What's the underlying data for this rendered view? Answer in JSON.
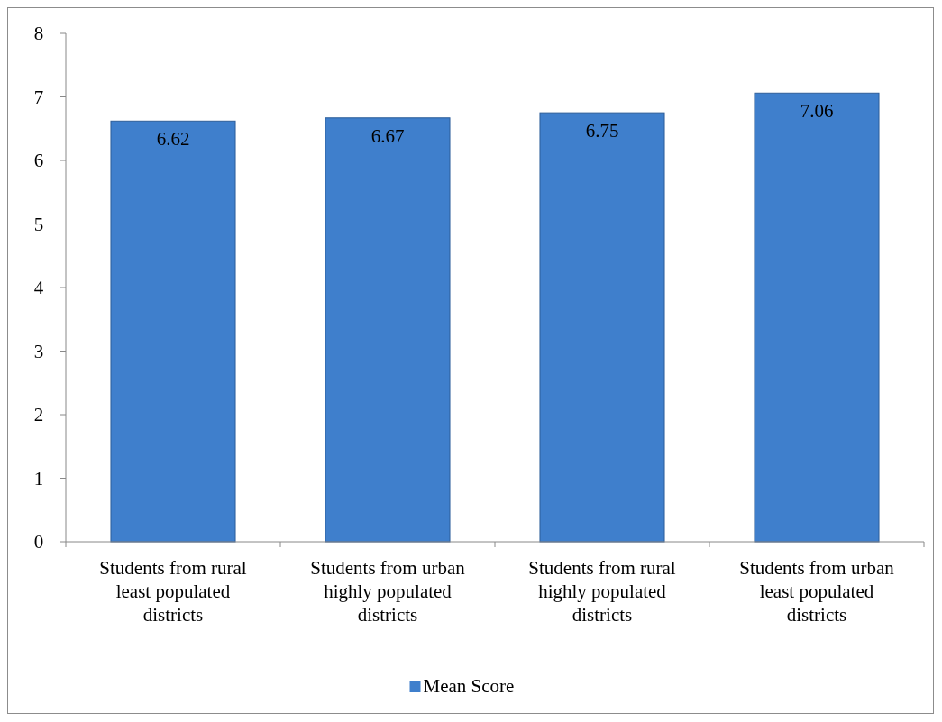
{
  "chart_data": {
    "type": "bar",
    "categories": [
      "Students from rural least populated districts",
      "Students from urban highly populated districts",
      "Students from rural highly populated districts",
      "Students from urban least populated districts"
    ],
    "series": [
      {
        "name": "Mean Score",
        "color": "#3f7fcc",
        "values": [
          6.62,
          6.67,
          6.75,
          7.06
        ]
      }
    ],
    "ylim": [
      0,
      8
    ],
    "yticks": [
      0,
      1,
      2,
      3,
      4,
      5,
      6,
      7,
      8
    ],
    "grid": false,
    "legend": "bottom",
    "data_labels": true
  }
}
